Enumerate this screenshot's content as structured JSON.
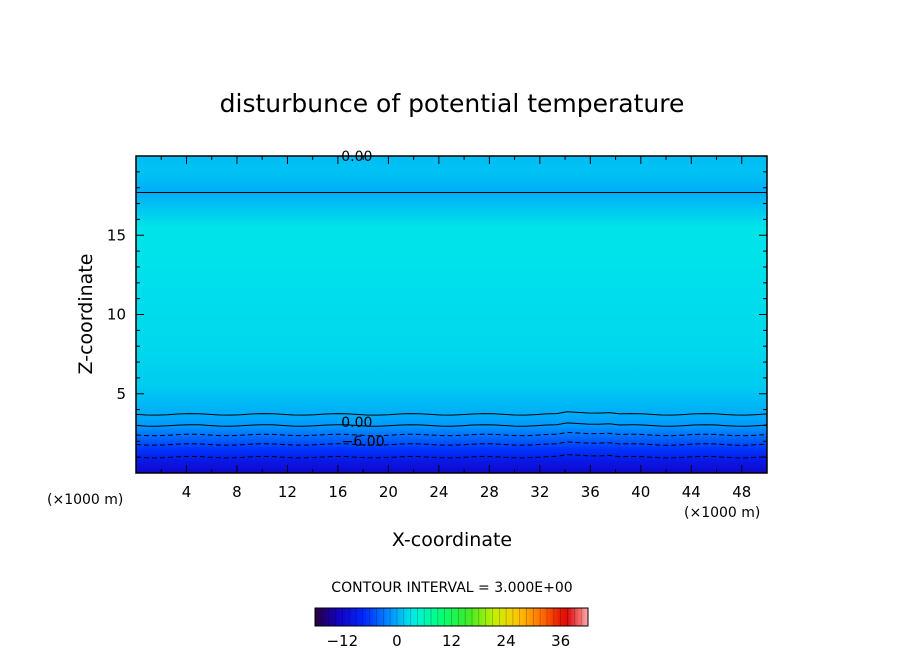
{
  "chart_data": {
    "type": "heatmap",
    "title": "disturbunce of potential temperature",
    "xlabel": "X-coordinate",
    "ylabel": "Z-coordinate",
    "x_unit": "(×1000 m)",
    "y_unit": "(×1000 m)",
    "xlim": [
      0,
      50
    ],
    "ylim": [
      0,
      20
    ],
    "x_ticks": [
      4,
      8,
      12,
      16,
      20,
      24,
      28,
      32,
      36,
      40,
      44,
      48
    ],
    "y_ticks": [
      5,
      10,
      15
    ],
    "contour_interval_text": "CONTOUR INTERVAL = 3.000E+00",
    "colorbar": {
      "range": [
        -18,
        42
      ],
      "tick_values": [
        -12,
        0,
        12,
        24,
        36
      ],
      "tick_labels": [
        "−12",
        "0",
        "12",
        "24",
        "36"
      ]
    },
    "levels": [
      {
        "z": 20.0,
        "value": 0.8
      },
      {
        "z": 19.0,
        "value": 1.2
      },
      {
        "z": 17.7,
        "value": 0.0
      },
      {
        "z": 15.5,
        "value": 3.0
      },
      {
        "z": 12.0,
        "value": 2.7
      },
      {
        "z": 8.0,
        "value": 2.3
      },
      {
        "z": 5.5,
        "value": 1.7
      },
      {
        "z": 3.7,
        "value": 0.0
      },
      {
        "z": 3.0,
        "value": -1.0
      },
      {
        "z": 2.3,
        "value": -3.5
      },
      {
        "z": 1.5,
        "value": -6.5
      },
      {
        "z": 0.8,
        "value": -9.5
      },
      {
        "z": 0.0,
        "value": -12.0
      }
    ],
    "contours": [
      {
        "label": "0.00",
        "z": 17.7,
        "style": "solid",
        "label_x": 17.5,
        "label_z": 19.7
      },
      {
        "label": "0.00",
        "z": 3.7,
        "style": "solid",
        "label_x": 17.5,
        "label_z": 2.9
      },
      {
        "label": "−6.00",
        "z": 1.8,
        "style": "dashed",
        "label_x": 18.0,
        "label_z": 1.7
      }
    ],
    "extra_lines": [
      {
        "z": 3.0,
        "style": "solid"
      },
      {
        "z": 2.4,
        "style": "dashed"
      },
      {
        "z": 1.0,
        "style": "dashed"
      }
    ]
  }
}
